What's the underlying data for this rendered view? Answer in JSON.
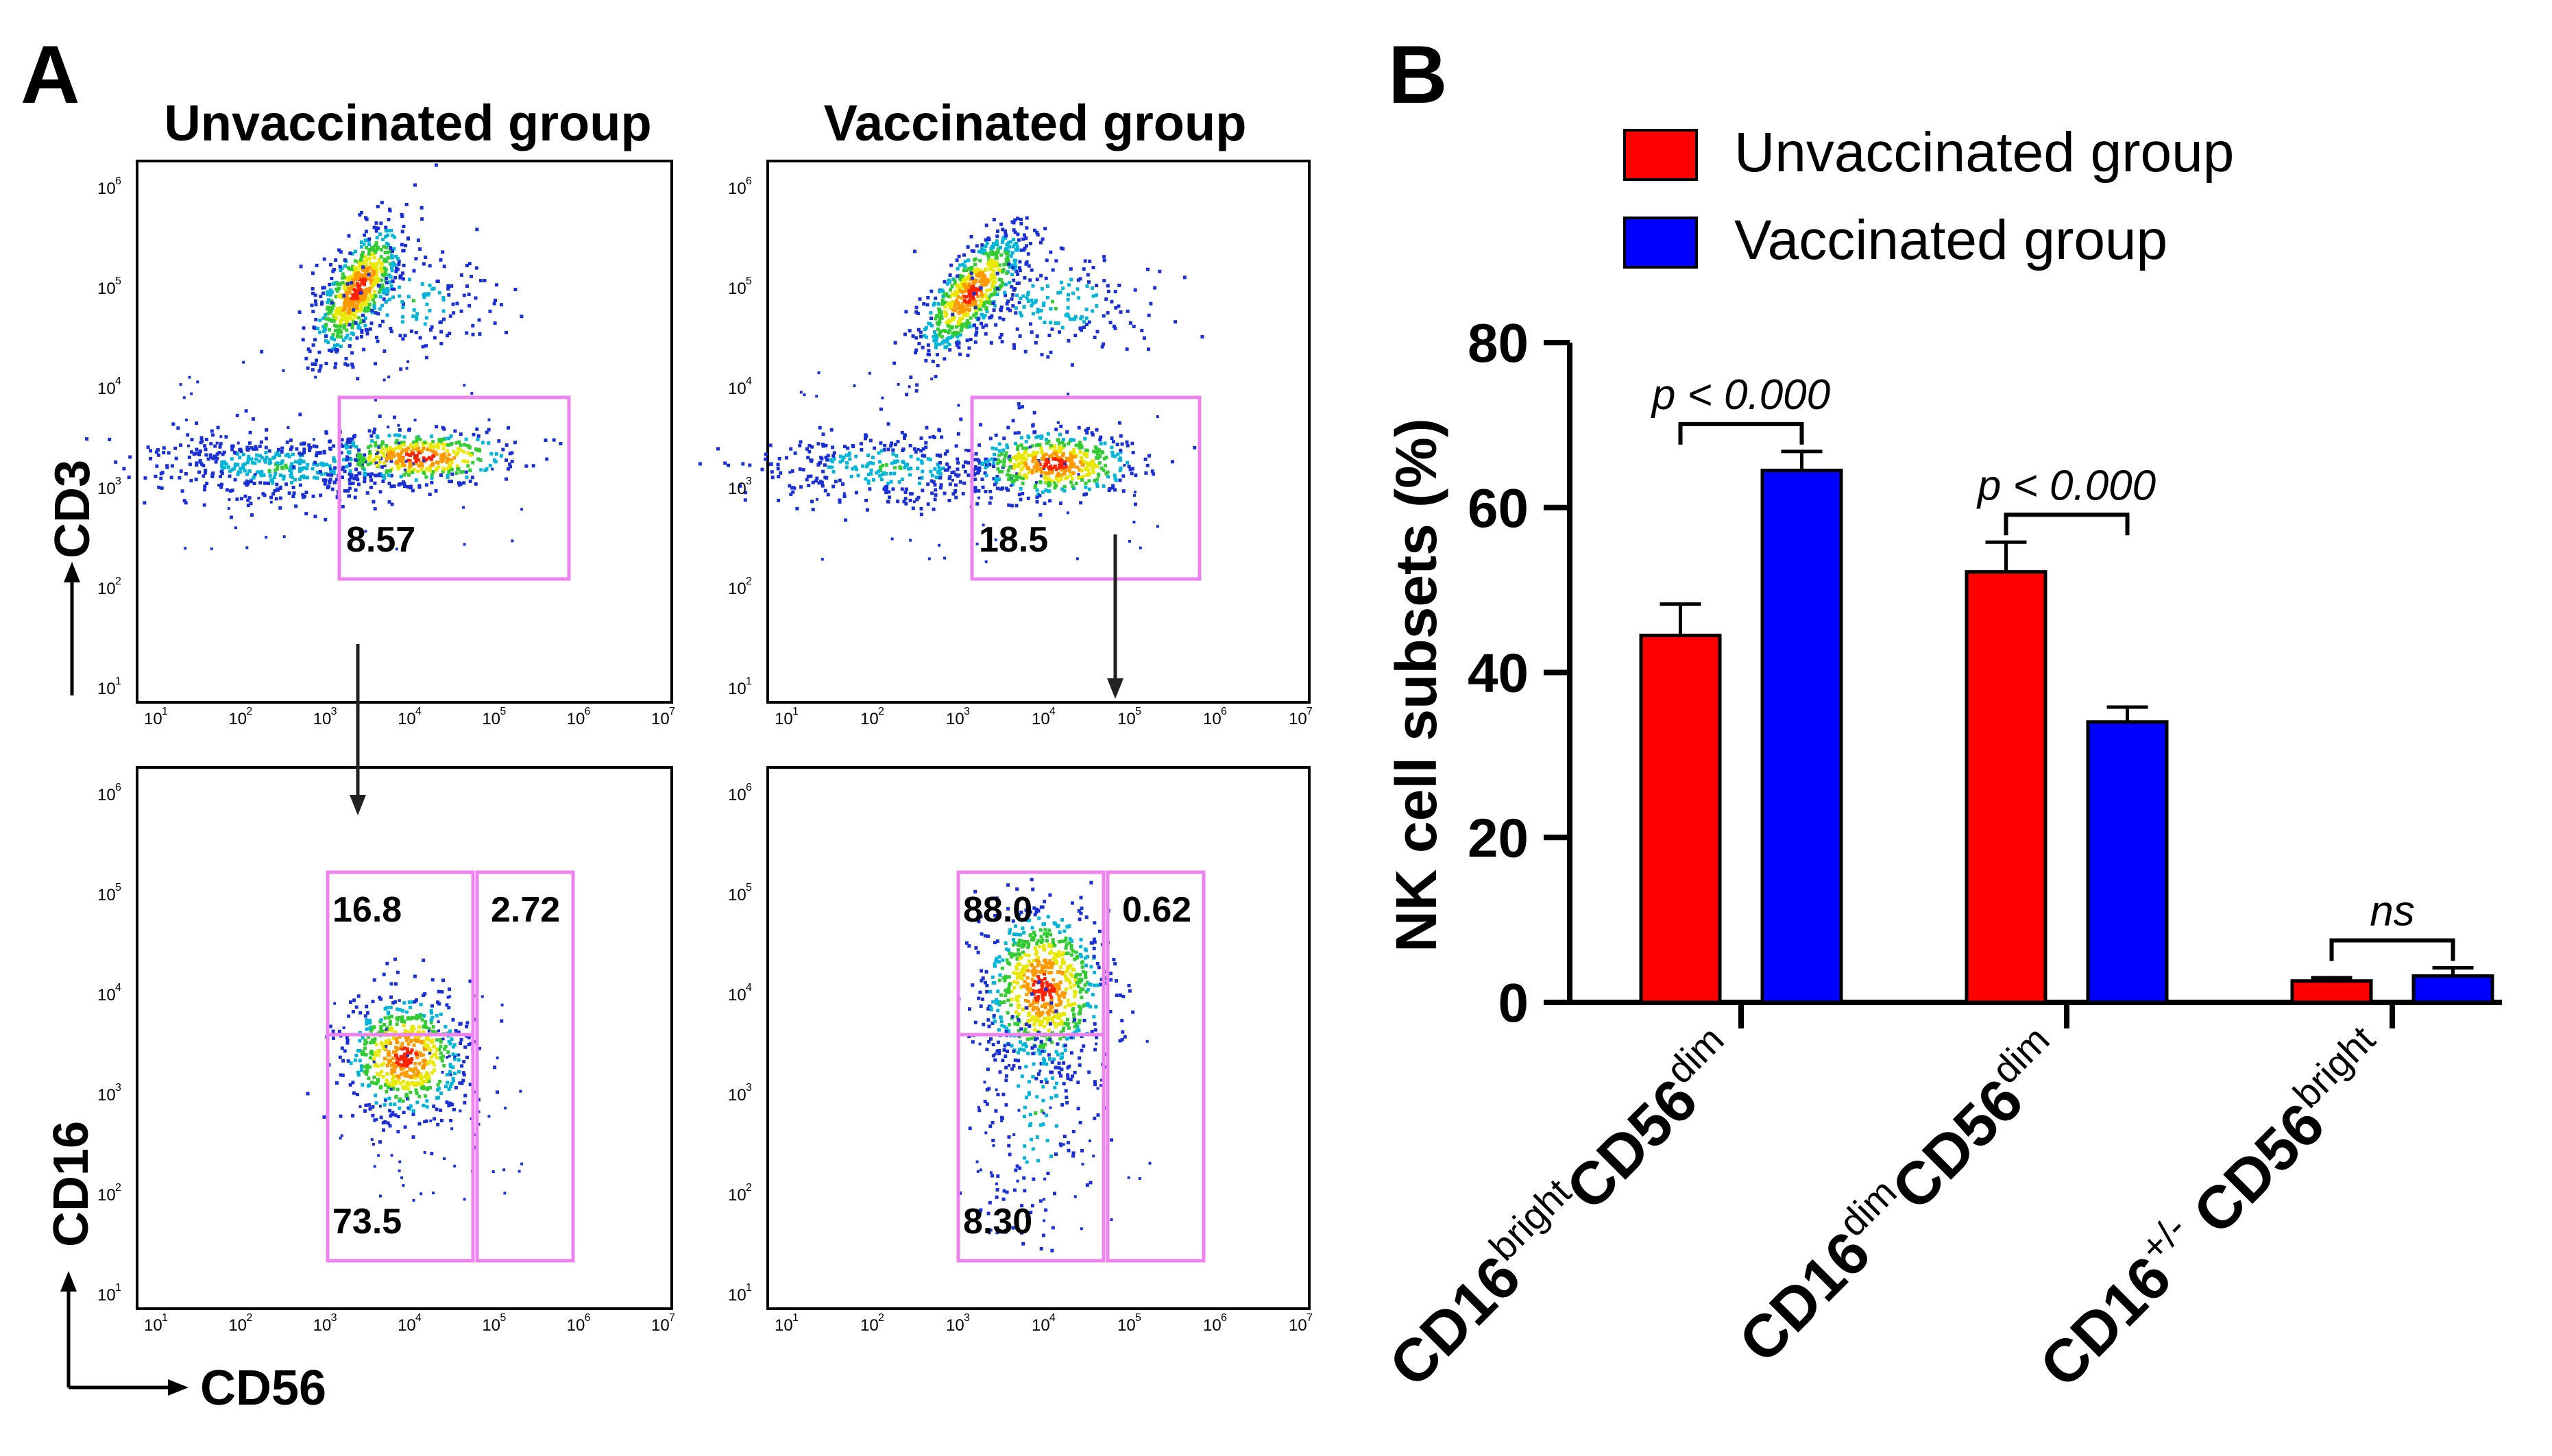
{
  "panel_a": {
    "label": "A",
    "unvacc_title": "Unvaccinated group",
    "vacc_title": "Vaccinated group",
    "cd3_label": "CD3",
    "cd16_label": "CD16",
    "cd56_label": "CD56",
    "gates": {
      "unvacc_cd3": "8.57",
      "vacc_cd3": "18.5",
      "unvacc_q_upper_left": "16.8",
      "unvacc_q_upper_right": "2.72",
      "unvacc_q_lower_left": "73.5",
      "vacc_q_upper_left": "88.0",
      "vacc_q_upper_right": "0.62",
      "vacc_q_lower_left": "8.30"
    },
    "log_ticks": [
      "10",
      "10",
      "10",
      "10",
      "10",
      "10",
      "10"
    ],
    "tick_exponents": [
      "1",
      "2",
      "3",
      "4",
      "5",
      "6",
      "7"
    ],
    "y_tick_exponents": [
      "1",
      "2",
      "3",
      "4",
      "5",
      "6"
    ],
    "colors": {
      "gate": "#ee82ee",
      "dots": "#1a2fd6"
    }
  },
  "chart_data": {
    "type": "bar",
    "panel_label": "B",
    "ylabel": "NK cell subsets (%)",
    "ylim": [
      0,
      80
    ],
    "yticks": [
      "0",
      "20",
      "40",
      "60",
      "80"
    ],
    "categories": [
      {
        "base": "CD16",
        "sup1": "bright",
        "mid": "CD56",
        "sup2": "dim"
      },
      {
        "base": "CD16",
        "sup1": "dim",
        "mid": "CD56",
        "sup2": "dim"
      },
      {
        "base": "CD16",
        "sup1": "+/-",
        "mid": " CD56",
        "sup2": "bright"
      }
    ],
    "series": [
      {
        "name": "Unvaccinated group",
        "color": "#ff0000",
        "values": [
          44.5,
          52.2,
          2.6
        ],
        "errors": [
          3.8,
          3.6,
          0.4
        ]
      },
      {
        "name": "Vaccinated group",
        "color": "#0000ff",
        "values": [
          64.5,
          34.0,
          3.2
        ],
        "errors": [
          2.3,
          1.8,
          1.0
        ]
      }
    ],
    "annotations": [
      "p < 0.000",
      "p < 0.000",
      "ns"
    ],
    "legend": "top"
  }
}
